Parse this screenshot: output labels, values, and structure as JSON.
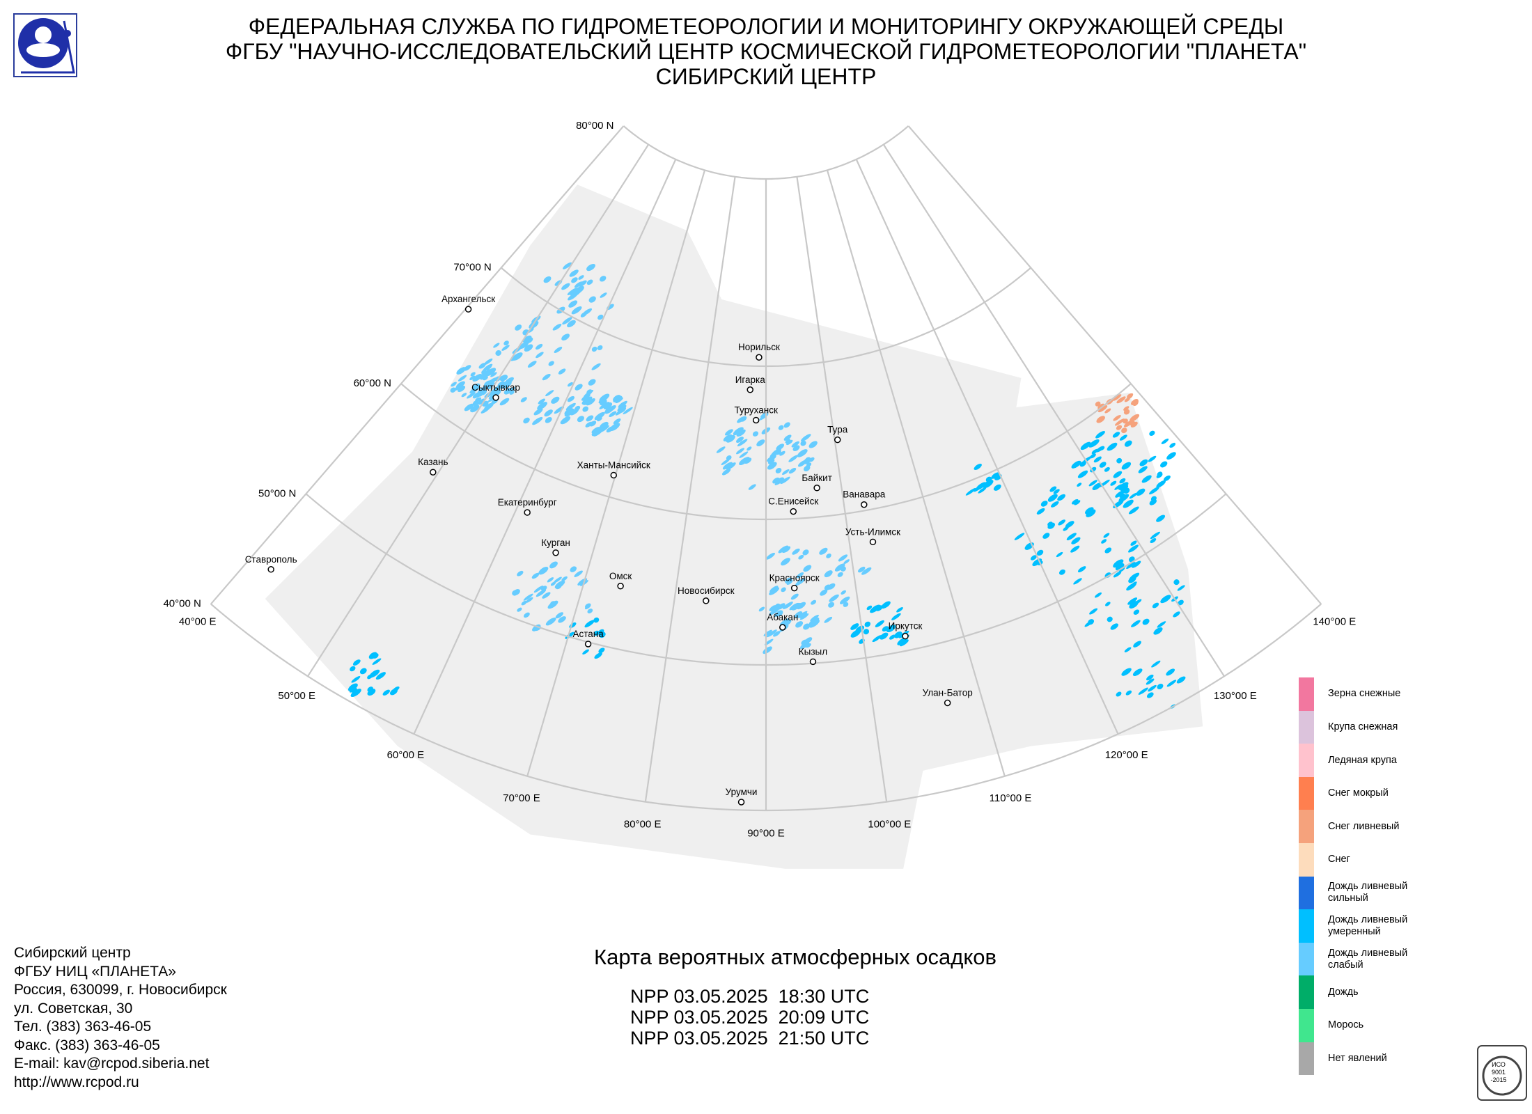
{
  "header": {
    "lines": [
      "ФЕДЕРАЛЬНАЯ СЛУЖБА ПО ГИДРОМЕТЕОРОЛОГИИ И МОНИТОРИНГУ ОКРУЖАЮЩЕЙ СРЕДЫ",
      "ФГБУ \"НАУЧНО-ИССЛЕДОВАТЕЛЬСКИЙ ЦЕНТР КОСМИЧЕСКОЙ ГИДРОМЕТЕОРОЛОГИИ \"ПЛАНЕТА\"",
      "СИБИРСКИЙ ЦЕНТР"
    ]
  },
  "map": {
    "lat_labels": [
      "80°00 N",
      "70°00 N",
      "60°00 N",
      "50°00 N",
      "40°00 N"
    ],
    "lon_labels": [
      "40°00 E",
      "50°00 E",
      "60°00 E",
      "70°00 E",
      "80°00 E",
      "90°00 E",
      "100°00 E",
      "110°00 E",
      "120°00 E",
      "130°00 E",
      "140°00 E"
    ],
    "cities": [
      "Архангельск",
      "Сыктывкар",
      "Казань",
      "Екатеринбург",
      "Ханты-Мансийск",
      "Курган",
      "Омск",
      "Астана",
      "Ставрополь",
      "Новосибирск",
      "Норильск",
      "Игарка",
      "Туруханск",
      "Тура",
      "Байкит",
      "Ванавара",
      "С.Енисейск",
      "Усть-Илимск",
      "Красноярск",
      "Абакан",
      "Кызыл",
      "Иркутск",
      "Улан-Батор",
      "Урумчи"
    ]
  },
  "legend": [
    {
      "label": "Зерна снежные",
      "color": "#f2779f"
    },
    {
      "label": "Крупа снежная",
      "color": "#dcc3dc"
    },
    {
      "label": "Ледяная крупа",
      "color": "#ffc2cd"
    },
    {
      "label": "Снег мокрый",
      "color": "#ff7f4f"
    },
    {
      "label": "Снег ливневый",
      "color": "#f5a27c"
    },
    {
      "label": "Снег",
      "color": "#fddcbc"
    },
    {
      "label": "Дождь ливневый сильный",
      "color": "#1f6fe0"
    },
    {
      "label": "Дождь ливневый умеренный",
      "color": "#00bfff"
    },
    {
      "label": "Дождь ливневый слабый",
      "color": "#66ccff"
    },
    {
      "label": "Дождь",
      "color": "#00ad68"
    },
    {
      "label": "Морось",
      "color": "#40e68e"
    },
    {
      "label": "Нет явлений",
      "color": "#a8a8a8"
    }
  ],
  "map_title": "Карта вероятных атмосферных осадков",
  "passes": [
    "NPP 03.05.2025  18:30 UTC",
    "NPP 03.05.2025  20:09 UTC",
    "NPP 03.05.2025  21:50 UTC"
  ],
  "footer": [
    "Сибирский центр",
    "ФГБУ НИЦ «ПЛАНЕТА»",
    "Россия, 630099, г. Новосибирск",
    "ул. Советская, 30",
    "Тел. (383) 363-46-05",
    "Факс. (383) 363-46-05",
    "E-mail: kav@rcpod.siberia.net",
    "http://www.rcpod.ru"
  ],
  "iso_badge": [
    "ИСО",
    "9001",
    "-2015"
  ]
}
